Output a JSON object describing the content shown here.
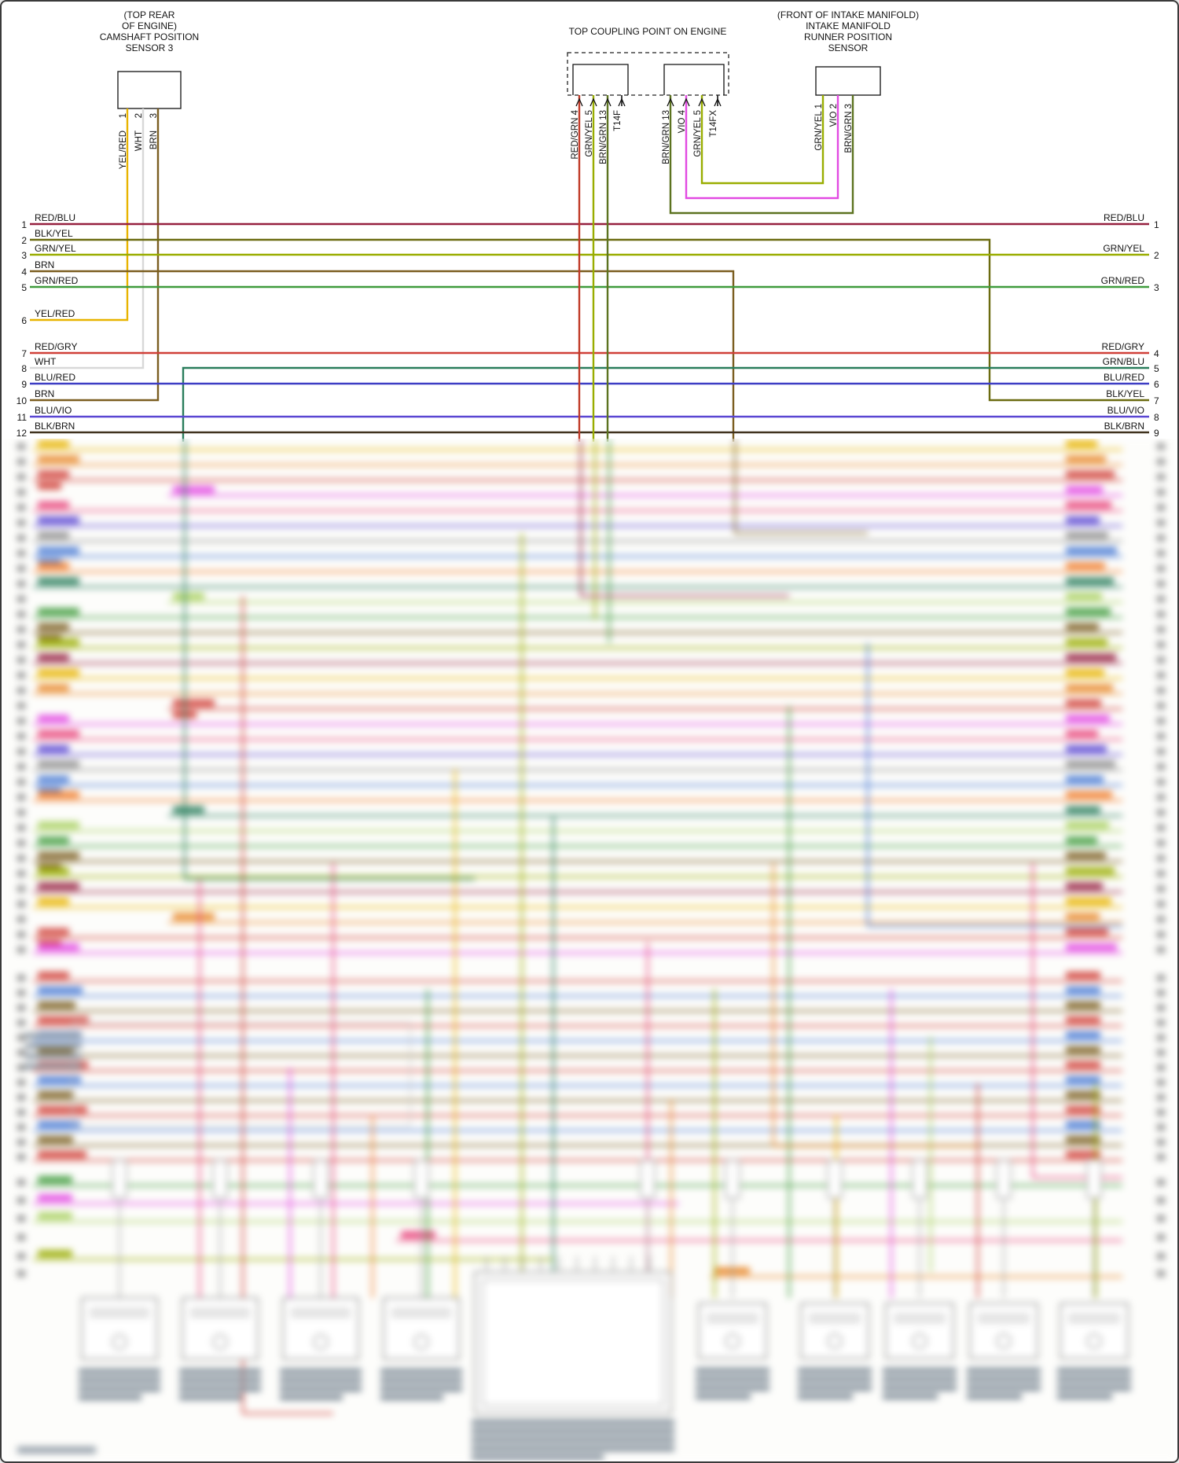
{
  "palette": {
    "INK": "#1a1a1a",
    "RED_BLU": "#96203f",
    "BLK_YEL": "#6b6b10",
    "GRN_YEL": "#99ad00",
    "BRN": "#7b5e20",
    "GRN_RED": "#3f9b3c",
    "YEL_RED": "#e8b400",
    "RED_GRY": "#d04038",
    "WHT": "#d8d8d8",
    "GRN_BLU": "#2a7d5c",
    "BLU_RED": "#3d3dc4",
    "BLU_VIO": "#5a46d2",
    "BLK_BRN": "#40321e",
    "RED_GRN": "#c03a28",
    "BRN_GRN": "#5c7320",
    "VIO": "#e24ae2"
  },
  "camshaft": {
    "l1": "(TOP REAR",
    "l2": "OF ENGINE)",
    "l3": "CAMSHAFT POSITION",
    "l4": "SENSOR 3",
    "p1": "1",
    "p2": "2",
    "p3": "3",
    "w1": "YEL/RED",
    "w2": "WHT",
    "w3": "BRN"
  },
  "coupling": {
    "title": "TOP COUPLING POINT ON ENGINE",
    "lp1": "RED/GRN  4",
    "lp2": "GRN/YEL  5",
    "lp3": "BRN/GRN  13",
    "lp4": "T14F",
    "rp1": "BRN/GRN  13",
    "rp2": "VIO  4",
    "rp3": "GRN/YEL  5",
    "rp4": "T14FX"
  },
  "runner": {
    "l1": "(FRONT OF INTAKE MANIFOLD)",
    "l2": "INTAKE MANIFOLD",
    "l3": "RUNNER POSITION",
    "l4": "SENSOR",
    "p1": "GRN/YEL  1",
    "p2": "VIO  2",
    "p3": "BRN/GRN  3"
  },
  "left": {
    "n1": "1",
    "w1": "RED/BLU",
    "n2": "2",
    "w2": "BLK/YEL",
    "n3": "3",
    "w3": "GRN/YEL",
    "n4": "4",
    "w4": "BRN",
    "n5": "5",
    "w5": "GRN/RED",
    "n6": "6",
    "w6": "YEL/RED",
    "n7": "7",
    "w7": "RED/GRY",
    "n8": "8",
    "w8": "WHT",
    "n9": "9",
    "w9": "BLU/RED",
    "n10": "10",
    "w10": "BRN",
    "n11": "11",
    "w11": "BLU/VIO",
    "n12": "12",
    "w12": "BLK/BRN"
  },
  "right": {
    "n1": "1",
    "w1": "RED/BLU",
    "n2": "2",
    "w2": "GRN/YEL",
    "n3": "3",
    "w3": "GRN/RED",
    "n4": "4",
    "w4": "RED/GRY",
    "n5": "5",
    "w5": "GRN/BLU",
    "n6": "6",
    "w6": "BLU/RED",
    "n7": "7",
    "w7": "BLK/YEL",
    "n8": "8",
    "w8": "BLU/VIO",
    "n9": "9",
    "w9": "BLK/BRN"
  }
}
